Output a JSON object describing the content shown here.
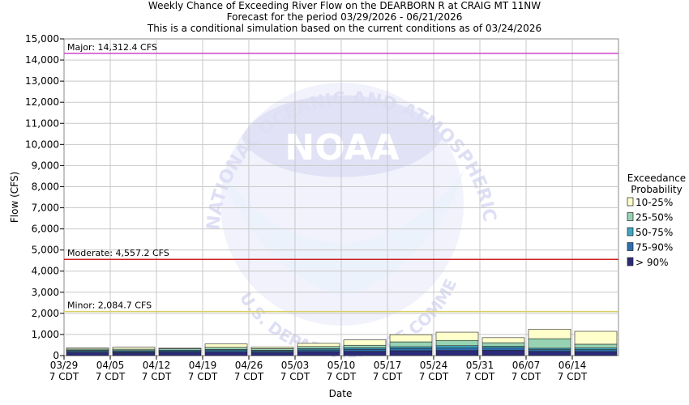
{
  "chart_data": {
    "type": "bar",
    "stacked": true,
    "title_lines": [
      "Weekly Chance of Exceeding River Flow on the DEARBORN R at CRAIG MT 11NW",
      "Forecast for the period 03/29/2026 - 06/21/2026",
      "This is a conditional simulation based on the current conditions as of 03/24/2026"
    ],
    "xlabel": "Date",
    "ylabel": "Flow (CFS)",
    "ylim": [
      0,
      15000
    ],
    "y_ticks": [
      "0",
      "1,000",
      "2,000",
      "3,000",
      "4,000",
      "5,000",
      "6,000",
      "7,000",
      "8,000",
      "9,000",
      "10,000",
      "11,000",
      "12,000",
      "13,000",
      "14,000",
      "15,000"
    ],
    "categories": [
      "03/29",
      "04/05",
      "04/12",
      "04/19",
      "04/26",
      "05/03",
      "05/10",
      "05/17",
      "05/24",
      "05/31",
      "06/07",
      "06/14"
    ],
    "category_sublabel": "7 CDT",
    "legend_title": [
      "Exceedance",
      "Probability"
    ],
    "series": [
      {
        "name": "> 90%",
        "color": "#2b2b7a",
        "values": [
          150,
          140,
          160,
          170,
          150,
          190,
          200,
          230,
          240,
          250,
          200,
          190
        ]
      },
      {
        "name": "75-90%",
        "color": "#2e6fb0",
        "values": [
          60,
          55,
          60,
          70,
          60,
          80,
          100,
          110,
          120,
          110,
          80,
          90
        ]
      },
      {
        "name": "50-75%",
        "color": "#3ea7c4",
        "values": [
          40,
          40,
          40,
          50,
          40,
          60,
          70,
          80,
          110,
          80,
          70,
          80
        ]
      },
      {
        "name": "25-50%",
        "color": "#97d3b3",
        "values": [
          60,
          70,
          60,
          100,
          80,
          100,
          120,
          230,
          250,
          170,
          450,
          180
        ]
      },
      {
        "name": "10-25%",
        "color": "#ffffcc",
        "values": [
          50,
          90,
          30,
          160,
          70,
          150,
          250,
          340,
          390,
          240,
          450,
          610
        ]
      }
    ],
    "thresholds": [
      {
        "label": "Major: 14,312.4 CFS",
        "value": 14312.4,
        "color": "#cc44cc"
      },
      {
        "label": "Moderate: 4,557.2 CFS",
        "value": 4557.2,
        "color": "#cc2222"
      },
      {
        "label": "Minor: 2,084.7 CFS",
        "value": 2084.7,
        "color": "#d8d060"
      }
    ],
    "grid": true,
    "legend_position": "right"
  },
  "watermark": {
    "logo_text": "NOAA",
    "ring_text": "NATIONAL OCEANIC AND ATMOSPHERIC ADMINISTRATION",
    "bottom_text": "U.S. DEPARTMENT OF COMMERCE"
  }
}
